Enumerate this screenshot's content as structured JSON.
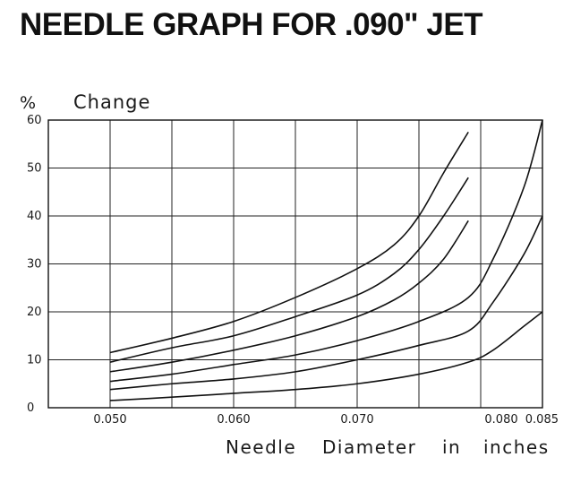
{
  "title": "NEEDLE GRAPH FOR .090\" JET",
  "chart_data": {
    "type": "line",
    "ylabel_symbol": "%",
    "ylabel": "Change",
    "xlabel_words": [
      "Needle",
      "Diameter",
      "in",
      "inches"
    ],
    "x_ticks": [
      "0.050",
      "0.060",
      "0.070",
      "0.080",
      "0.085"
    ],
    "y_ticks": [
      "0",
      "10",
      "20",
      "30",
      "40",
      "50",
      "60"
    ],
    "xlim": [
      0.045,
      0.085
    ],
    "ylim": [
      0,
      60
    ],
    "grid": true,
    "series": [
      {
        "x": [
          0.05,
          0.055,
          0.06,
          0.065,
          0.07,
          0.073,
          0.075,
          0.077,
          0.079
        ],
        "values": [
          11.5,
          14.5,
          18,
          23,
          29,
          34,
          40,
          49,
          57.5
        ]
      },
      {
        "x": [
          0.05,
          0.055,
          0.06,
          0.065,
          0.07,
          0.073,
          0.075,
          0.077,
          0.079
        ],
        "values": [
          9.5,
          12.5,
          15,
          19,
          23.5,
          28,
          33,
          40,
          48
        ]
      },
      {
        "x": [
          0.05,
          0.055,
          0.06,
          0.065,
          0.07,
          0.073,
          0.075,
          0.077,
          0.079
        ],
        "values": [
          7.5,
          9.5,
          12,
          15,
          19,
          22.5,
          26,
          31,
          39
        ]
      },
      {
        "x": [
          0.05,
          0.055,
          0.06,
          0.065,
          0.07,
          0.075,
          0.079,
          0.081,
          0.0835,
          0.085
        ],
        "values": [
          5.5,
          7,
          9,
          11,
          14,
          18,
          23,
          31,
          46,
          60
        ]
      },
      {
        "x": [
          0.05,
          0.055,
          0.06,
          0.065,
          0.07,
          0.075,
          0.079,
          0.081,
          0.0835,
          0.085
        ],
        "values": [
          3.8,
          5,
          6,
          7.5,
          10,
          13,
          16,
          22,
          32,
          40
        ]
      },
      {
        "x": [
          0.05,
          0.055,
          0.06,
          0.065,
          0.07,
          0.075,
          0.079,
          0.081,
          0.0835,
          0.085
        ],
        "values": [
          1.5,
          2.2,
          3,
          3.8,
          5,
          7,
          9.5,
          12,
          17,
          20
        ]
      }
    ]
  }
}
